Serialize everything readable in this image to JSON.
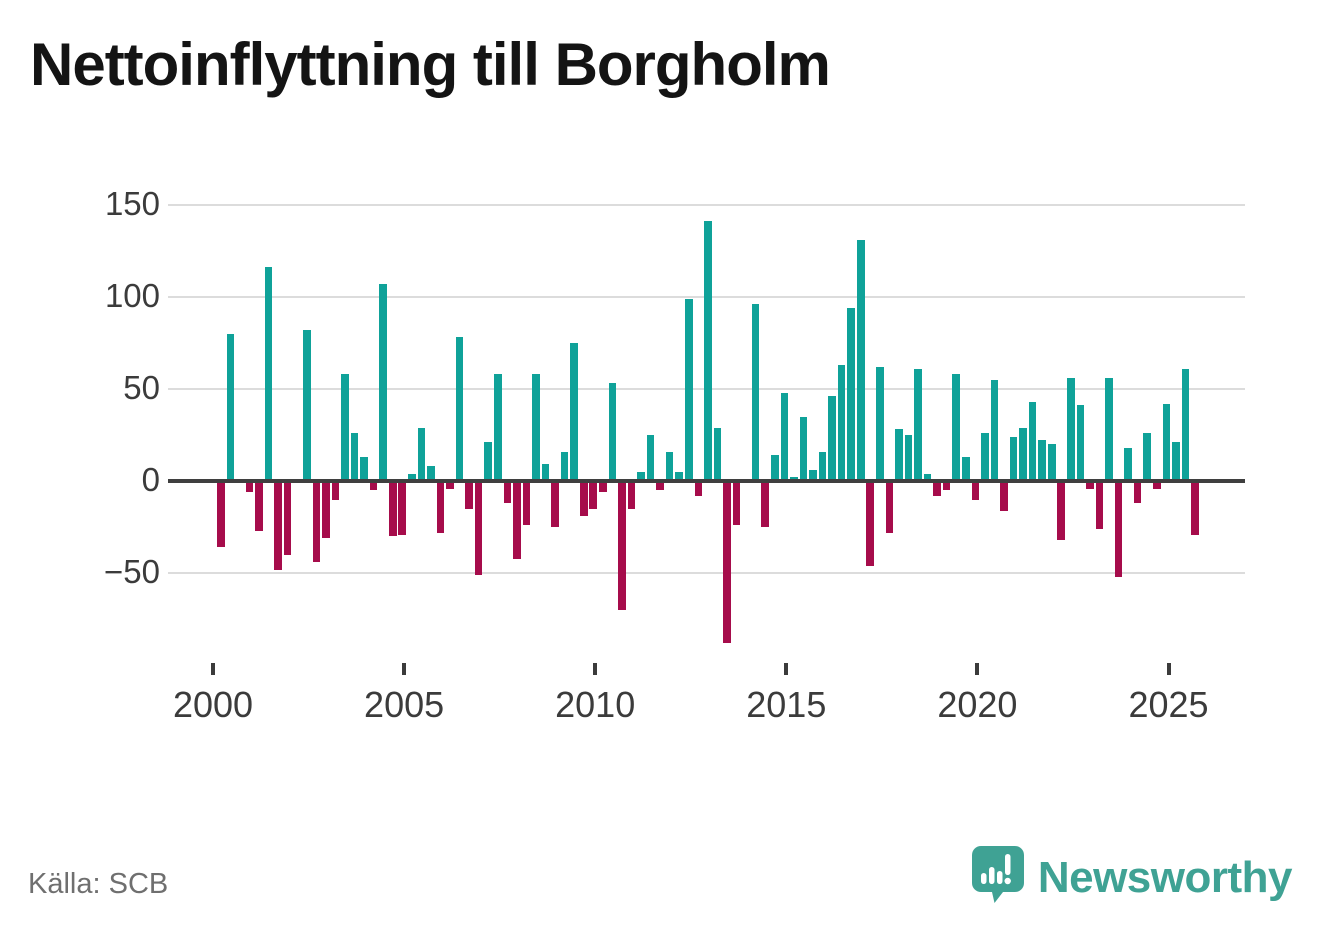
{
  "title": "Nettoinflyttning till Borgholm",
  "source": "Källa: SCB",
  "brand": {
    "name": "Newsworthy",
    "icon": "speech-bubble-bar-chart-icon",
    "color": "#3fa294"
  },
  "colors": {
    "positive": "#0fa299",
    "negative": "#a60c4b",
    "grid": "#dcdcdc",
    "zero_line": "#3f3f3f",
    "axis_text": "#3b3b3b"
  },
  "chart_data": {
    "type": "bar",
    "title": "Nettoinflyttning till Borgholm",
    "xlabel": "",
    "ylabel": "",
    "frequency": "quarterly",
    "start_period": "2000Q1",
    "end_period": "2025Q3",
    "ylim": [
      -95,
      150
    ],
    "grid": true,
    "legend": "none",
    "y_ticks": [
      {
        "label": "150",
        "value": 150
      },
      {
        "label": "100",
        "value": 100
      },
      {
        "label": "50",
        "value": 50
      },
      {
        "label": "0",
        "value": 0
      },
      {
        "label": "−50",
        "value": -50
      }
    ],
    "x_ticks": [
      {
        "label": "2000",
        "year": 2000
      },
      {
        "label": "2005",
        "year": 2005
      },
      {
        "label": "2010",
        "year": 2010
      },
      {
        "label": "2015",
        "year": 2015
      },
      {
        "label": "2020",
        "year": 2020
      },
      {
        "label": "2025",
        "year": 2025
      }
    ],
    "series": [
      {
        "name": "Nettoinflyttning",
        "values": [
          -35,
          80,
          0,
          -5,
          -26,
          116,
          -47,
          -39,
          0,
          82,
          -43,
          -30,
          -9,
          58,
          26,
          13,
          -4,
          107,
          -29,
          -28,
          4,
          29,
          8,
          -27,
          -3,
          78,
          -14,
          -50,
          21,
          58,
          -11,
          -41,
          -23,
          58,
          9,
          -24,
          16,
          75,
          -18,
          -14,
          -5,
          53,
          -69,
          -14,
          5,
          25,
          -4,
          16,
          5,
          99,
          -7,
          141,
          29,
          -87,
          -23,
          0,
          96,
          -24,
          14,
          48,
          2,
          35,
          6,
          16,
          46,
          63,
          94,
          131,
          -45,
          62,
          -27,
          28,
          25,
          61,
          4,
          -7,
          -4,
          58,
          13,
          -9,
          26,
          55,
          -15,
          24,
          29,
          43,
          22,
          20,
          -31,
          56,
          41,
          -3,
          -25,
          56,
          -51,
          18,
          -11,
          26,
          -3,
          42,
          21,
          61,
          -28
        ]
      }
    ]
  }
}
